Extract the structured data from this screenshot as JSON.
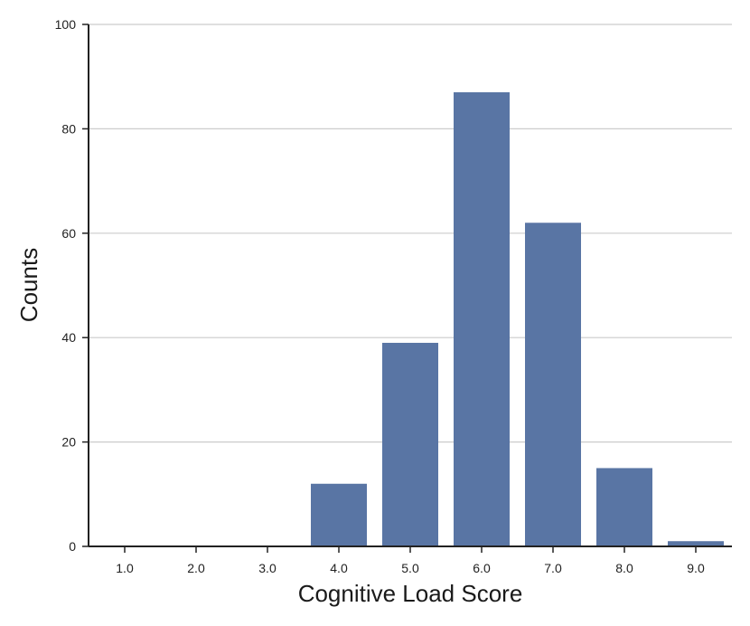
{
  "chart_data": {
    "type": "bar",
    "categories": [
      "1.0",
      "2.0",
      "3.0",
      "4.0",
      "5.0",
      "6.0",
      "7.0",
      "8.0",
      "9.0"
    ],
    "values": [
      0,
      0,
      0,
      12,
      39,
      87,
      62,
      15,
      1
    ],
    "xlabel": "Cognitive Load Score",
    "ylabel": "Counts",
    "ylim": [
      0,
      100
    ],
    "yticks": [
      "0",
      "20",
      "40",
      "60",
      "80",
      "100"
    ],
    "grid": "horizontal",
    "bar_color": "#5975a4",
    "grid_color": "#cccccc",
    "axis_color": "#222222"
  }
}
